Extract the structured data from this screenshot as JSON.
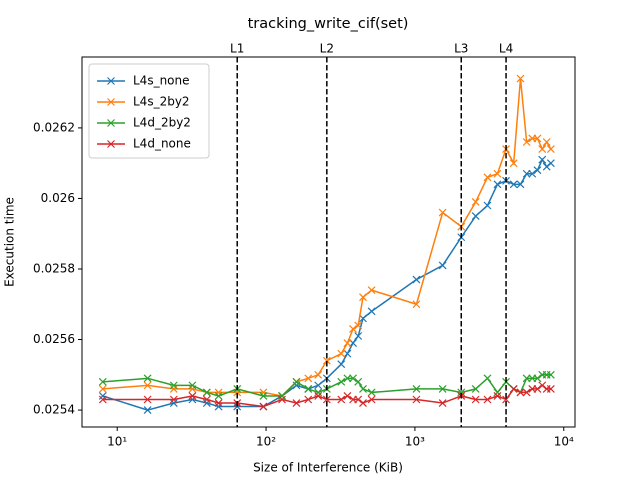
{
  "chart_data": {
    "type": "line",
    "title": "tracking_write_cif(set)",
    "xlabel": "Size of Interference (KiB)",
    "ylabel": "Execution time",
    "xscale": "log",
    "xlim": [
      5.8,
      11900
    ],
    "ylim": [
      0.025352,
      0.026401
    ],
    "xticks": [
      {
        "value": 10,
        "label": "10¹"
      },
      {
        "value": 100,
        "label": "10²"
      },
      {
        "value": 1000,
        "label": "10³"
      },
      {
        "value": 10000,
        "label": "10⁴"
      }
    ],
    "yticks": [
      0.0254,
      0.0256,
      0.0258,
      0.026,
      0.0262
    ],
    "legend": "upper left",
    "marker": "x",
    "vlines": [
      {
        "x": 64,
        "label": "L1"
      },
      {
        "x": 256,
        "label": "L2"
      },
      {
        "x": 2048,
        "label": "L3"
      },
      {
        "x": 4096,
        "label": "L4"
      }
    ],
    "x": [
      8,
      16,
      24,
      32,
      40,
      48,
      64,
      96,
      128,
      160,
      192,
      224,
      256,
      320,
      352,
      384,
      416,
      448,
      512,
      1024,
      1536,
      2048,
      2560,
      3072,
      3584,
      4096,
      4608,
      5120,
      5632,
      6144,
      6656,
      7168,
      7680,
      8192
    ],
    "series": [
      {
        "name": "L4s_none",
        "color": "#1f77b4",
        "values": [
          0.02544,
          0.0254,
          0.02542,
          0.02543,
          0.02542,
          0.02541,
          0.02541,
          0.02541,
          0.02544,
          0.02547,
          0.02546,
          0.02547,
          0.02549,
          0.02553,
          0.02556,
          0.02559,
          0.02561,
          0.02566,
          0.02568,
          0.02577,
          0.02581,
          0.02589,
          0.02595,
          0.02598,
          0.02604,
          0.02605,
          0.02604,
          0.02604,
          0.02607,
          0.02607,
          0.02608,
          0.02611,
          0.02609,
          0.0261
        ]
      },
      {
        "name": "L4s_2by2",
        "color": "#ff7f0e",
        "values": [
          0.02546,
          0.02547,
          0.02546,
          0.02546,
          0.02545,
          0.02545,
          0.02545,
          0.02545,
          0.02544,
          0.02548,
          0.02549,
          0.0255,
          0.02554,
          0.02556,
          0.02559,
          0.02563,
          0.02564,
          0.02572,
          0.02574,
          0.0257,
          0.02596,
          0.02592,
          0.02599,
          0.02606,
          0.02607,
          0.02614,
          0.0261,
          0.02634,
          0.02616,
          0.02617,
          0.02617,
          0.02614,
          0.02616,
          0.02614
        ]
      },
      {
        "name": "L4d_2by2",
        "color": "#2ca02c",
        "values": [
          0.02548,
          0.02549,
          0.02547,
          0.02547,
          0.02545,
          0.02544,
          0.02546,
          0.02544,
          0.02544,
          0.02548,
          0.02546,
          0.02545,
          0.02546,
          0.02548,
          0.02549,
          0.02549,
          0.02548,
          0.02546,
          0.02545,
          0.02546,
          0.02546,
          0.02545,
          0.02546,
          0.02549,
          0.02545,
          0.02548,
          0.02546,
          0.02545,
          0.02549,
          0.02549,
          0.02549,
          0.0255,
          0.0255,
          0.0255
        ]
      },
      {
        "name": "L4d_none",
        "color": "#d62728",
        "values": [
          0.02543,
          0.02543,
          0.02543,
          0.02544,
          0.02543,
          0.02542,
          0.02542,
          0.02541,
          0.02543,
          0.02542,
          0.02543,
          0.02544,
          0.02543,
          0.02543,
          0.02544,
          0.02543,
          0.02543,
          0.02542,
          0.02543,
          0.02543,
          0.02542,
          0.02544,
          0.02543,
          0.02543,
          0.02544,
          0.02543,
          0.02546,
          0.02545,
          0.02545,
          0.02546,
          0.02546,
          0.02547,
          0.02546,
          0.02546
        ]
      }
    ]
  }
}
